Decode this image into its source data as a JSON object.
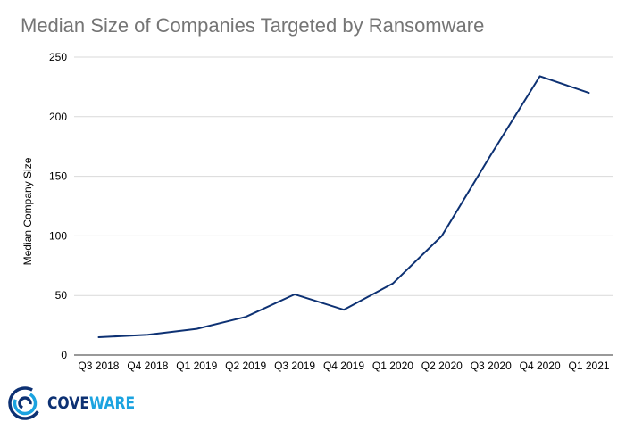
{
  "chart_data": {
    "type": "line",
    "title": "Median Size of Companies Targeted by Ransomware",
    "xlabel": "",
    "ylabel": "Median Company Size",
    "ylim": [
      0,
      250
    ],
    "yticks": [
      0,
      50,
      100,
      150,
      200,
      250
    ],
    "grid": true,
    "categories": [
      "Q3 2018",
      "Q4 2018",
      "Q1 2019",
      "Q2 2019",
      "Q3 2019",
      "Q4 2019",
      "Q1 2020",
      "Q2 2020",
      "Q3 2020",
      "Q4 2020",
      "Q1 2021"
    ],
    "series": [
      {
        "name": "Median Company Size",
        "values": [
          15,
          17,
          22,
          32,
          51,
          38,
          60,
          100,
          168,
          234,
          220
        ]
      }
    ]
  },
  "colors": {
    "line": "#0d3173",
    "grid": "#d9d9d9",
    "title": "#757575",
    "brand_dark": "#0d3173",
    "brand_light": "#1ba3e0"
  },
  "brand": {
    "name_part1": "COVE",
    "name_part2": "WARE",
    "logo_icon": "concentric-circles-icon"
  }
}
